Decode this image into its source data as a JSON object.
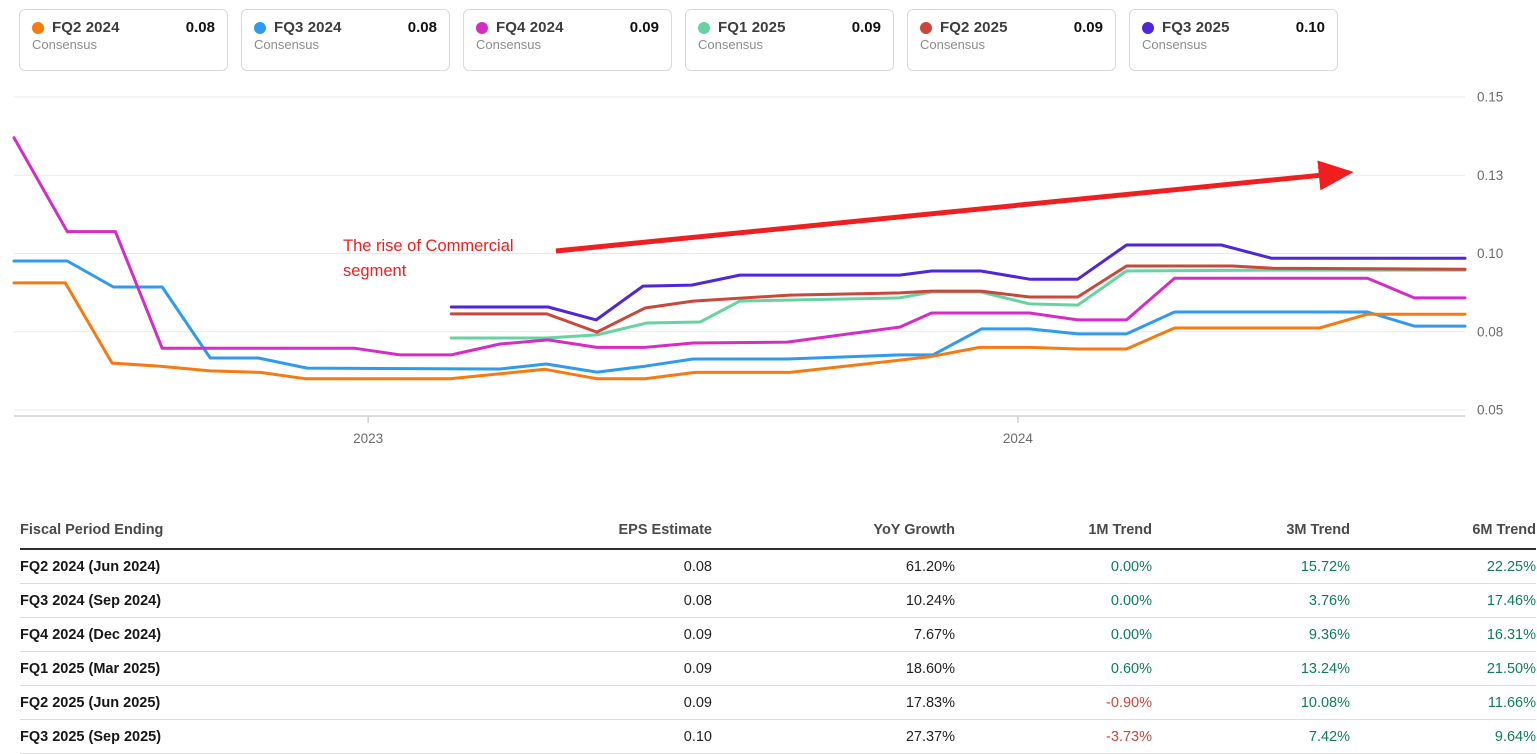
{
  "legend_cards": [
    {
      "label": "FQ2 2024",
      "value": "0.08",
      "sub": "Consensus",
      "color": "#f57a11"
    },
    {
      "label": "FQ3 2024",
      "value": "0.08",
      "sub": "Consensus",
      "color": "#2f9bf0"
    },
    {
      "label": "FQ4 2024",
      "value": "0.09",
      "sub": "Consensus",
      "color": "#d62cc5"
    },
    {
      "label": "FQ1 2025",
      "value": "0.09",
      "sub": "Consensus",
      "color": "#67d3a2"
    },
    {
      "label": "FQ2 2025",
      "value": "0.09",
      "sub": "Consensus",
      "color": "#c9473b"
    },
    {
      "label": "FQ3 2025",
      "value": "0.10",
      "sub": "Consensus",
      "color": "#5026d9"
    }
  ],
  "chart_data": {
    "type": "line",
    "title": "",
    "xlabel": "",
    "ylabel": "",
    "x_axis": {
      "range": [
        2022.455,
        2024.688
      ],
      "ticks": [
        2023,
        2024
      ],
      "tick_labels": [
        "2023",
        "2024"
      ]
    },
    "y_axis": {
      "range": [
        0.05,
        0.15
      ],
      "ticks": [
        0.05,
        0.075,
        0.1,
        0.125,
        0.15
      ],
      "tick_labels": [
        "0.05",
        "0.08",
        "0.10",
        "0.13",
        "0.15"
      ],
      "grid": true
    },
    "legend_position": "top-cards",
    "annotation": {
      "text": "The rise of Commercial segment",
      "lines": [
        "The rise of Commercial",
        "segment"
      ],
      "color": "#f01e1e",
      "arrow": {
        "x1": 2023.289,
        "y1": 0.1008,
        "x2": 2024.49,
        "y2": 0.1255
      }
    },
    "series": [
      {
        "name": "FQ1 2025",
        "sub": "Consensus",
        "color": "#67d3a2",
        "points": [
          [
            2023.128,
            0.073
          ],
          [
            2023.275,
            0.073
          ],
          [
            2023.352,
            0.074
          ],
          [
            2023.429,
            0.0778
          ],
          [
            2023.511,
            0.0781
          ],
          [
            2023.572,
            0.0848
          ],
          [
            2023.818,
            0.0858
          ],
          [
            2023.867,
            0.0877
          ],
          [
            2023.943,
            0.0877
          ],
          [
            2024.018,
            0.0839
          ],
          [
            2024.092,
            0.0835
          ],
          [
            2024.167,
            0.0944
          ],
          [
            2024.398,
            0.0947
          ],
          [
            2024.688,
            0.0947
          ]
        ]
      },
      {
        "name": "FQ2 2025",
        "sub": "Consensus",
        "color": "#c9473b",
        "points": [
          [
            2023.128,
            0.0807
          ],
          [
            2023.275,
            0.0807
          ],
          [
            2023.352,
            0.0749
          ],
          [
            2023.426,
            0.0826
          ],
          [
            2023.5,
            0.0848
          ],
          [
            2023.649,
            0.0867
          ],
          [
            2023.818,
            0.0874
          ],
          [
            2023.867,
            0.088
          ],
          [
            2023.943,
            0.088
          ],
          [
            2024.018,
            0.0861
          ],
          [
            2024.092,
            0.0861
          ],
          [
            2024.167,
            0.096
          ],
          [
            2024.33,
            0.096
          ],
          [
            2024.392,
            0.0953
          ],
          [
            2024.688,
            0.095
          ]
        ]
      },
      {
        "name": "FQ3 2025",
        "sub": "Consensus",
        "color": "#5026d9",
        "points": [
          [
            2023.128,
            0.0829
          ],
          [
            2023.277,
            0.0829
          ],
          [
            2023.351,
            0.0788
          ],
          [
            2023.423,
            0.0896
          ],
          [
            2023.498,
            0.0899
          ],
          [
            2023.572,
            0.0931
          ],
          [
            2023.818,
            0.0931
          ],
          [
            2023.867,
            0.0944
          ],
          [
            2023.943,
            0.0944
          ],
          [
            2024.018,
            0.0918
          ],
          [
            2024.092,
            0.0918
          ],
          [
            2024.167,
            0.1027
          ],
          [
            2024.313,
            0.1027
          ],
          [
            2024.39,
            0.0985
          ],
          [
            2024.688,
            0.0985
          ]
        ]
      },
      {
        "name": "FQ3 2024",
        "sub": "Consensus",
        "color": "#2f9bf0",
        "points": [
          [
            2022.455,
            0.0976
          ],
          [
            2022.537,
            0.0976
          ],
          [
            2022.608,
            0.0893
          ],
          [
            2022.683,
            0.0893
          ],
          [
            2022.757,
            0.0666
          ],
          [
            2022.831,
            0.0666
          ],
          [
            2022.906,
            0.0634
          ],
          [
            2023.203,
            0.0631
          ],
          [
            2023.274,
            0.0647
          ],
          [
            2023.352,
            0.0621
          ],
          [
            2023.426,
            0.064
          ],
          [
            2023.5,
            0.0663
          ],
          [
            2023.645,
            0.0663
          ],
          [
            2023.818,
            0.0676
          ],
          [
            2023.869,
            0.0676
          ],
          [
            2023.944,
            0.0759
          ],
          [
            2024.018,
            0.0759
          ],
          [
            2024.092,
            0.0743
          ],
          [
            2024.167,
            0.0743
          ],
          [
            2024.241,
            0.0813
          ],
          [
            2024.538,
            0.0813
          ],
          [
            2024.61,
            0.0768
          ],
          [
            2024.688,
            0.0768
          ]
        ]
      },
      {
        "name": "FQ2 2024",
        "sub": "Consensus",
        "color": "#f57a11",
        "points": [
          [
            2022.455,
            0.0906
          ],
          [
            2022.534,
            0.0906
          ],
          [
            2022.606,
            0.065
          ],
          [
            2022.68,
            0.064
          ],
          [
            2022.757,
            0.0625
          ],
          [
            2022.834,
            0.062
          ],
          [
            2022.903,
            0.06
          ],
          [
            2023.126,
            0.06
          ],
          [
            2023.272,
            0.063
          ],
          [
            2023.352,
            0.06
          ],
          [
            2023.426,
            0.06
          ],
          [
            2023.503,
            0.062
          ],
          [
            2023.649,
            0.062
          ],
          [
            2023.864,
            0.067
          ],
          [
            2023.941,
            0.07
          ],
          [
            2024.018,
            0.07
          ],
          [
            2024.092,
            0.0695
          ],
          [
            2024.167,
            0.0695
          ],
          [
            2024.241,
            0.0762
          ],
          [
            2024.464,
            0.0762
          ],
          [
            2024.538,
            0.0806
          ],
          [
            2024.688,
            0.0806
          ]
        ]
      },
      {
        "name": "FQ4 2024",
        "sub": "Consensus",
        "color": "#d62cc5",
        "points": [
          [
            2022.455,
            0.137
          ],
          [
            2022.537,
            0.107
          ],
          [
            2022.611,
            0.107
          ],
          [
            2022.683,
            0.0697
          ],
          [
            2022.98,
            0.0697
          ],
          [
            2023.049,
            0.0676
          ],
          [
            2023.128,
            0.0676
          ],
          [
            2023.203,
            0.0711
          ],
          [
            2023.277,
            0.0724
          ],
          [
            2023.352,
            0.07
          ],
          [
            2023.426,
            0.07
          ],
          [
            2023.5,
            0.0714
          ],
          [
            2023.645,
            0.0717
          ],
          [
            2023.818,
            0.0765
          ],
          [
            2023.867,
            0.081
          ],
          [
            2024.018,
            0.081
          ],
          [
            2024.092,
            0.0788
          ],
          [
            2024.167,
            0.0788
          ],
          [
            2024.241,
            0.0921
          ],
          [
            2024.538,
            0.0921
          ],
          [
            2024.61,
            0.0858
          ],
          [
            2024.688,
            0.0858
          ]
        ]
      }
    ]
  },
  "table": {
    "headers": [
      "Fiscal Period Ending",
      "EPS Estimate",
      "YoY Growth",
      "1M Trend",
      "3M Trend",
      "6M Trend"
    ],
    "rows": [
      {
        "cells": [
          "FQ2 2024 (Jun 2024)",
          "0.08",
          "61.20%",
          "0.00%",
          "15.72%",
          "22.25%"
        ]
      },
      {
        "cells": [
          "FQ3 2024 (Sep 2024)",
          "0.08",
          "10.24%",
          "0.00%",
          "3.76%",
          "17.46%"
        ]
      },
      {
        "cells": [
          "FQ4 2024 (Dec 2024)",
          "0.09",
          "7.67%",
          "0.00%",
          "9.36%",
          "16.31%"
        ]
      },
      {
        "cells": [
          "FQ1 2025 (Mar 2025)",
          "0.09",
          "18.60%",
          "0.60%",
          "13.24%",
          "21.50%"
        ]
      },
      {
        "cells": [
          "FQ2 2025 (Jun 2025)",
          "0.09",
          "17.83%",
          "-0.90%",
          "10.08%",
          "11.66%"
        ]
      },
      {
        "cells": [
          "FQ3 2025 (Sep 2025)",
          "0.10",
          "27.37%",
          "-3.73%",
          "7.42%",
          "9.64%"
        ]
      }
    ]
  },
  "colors": {
    "trend_up": "#0e7c5b",
    "trend_down": "#c9463d",
    "grid": "#e8e8e8",
    "axis_line": "#cfcfcf",
    "tick_label": "#6b6b6b"
  }
}
